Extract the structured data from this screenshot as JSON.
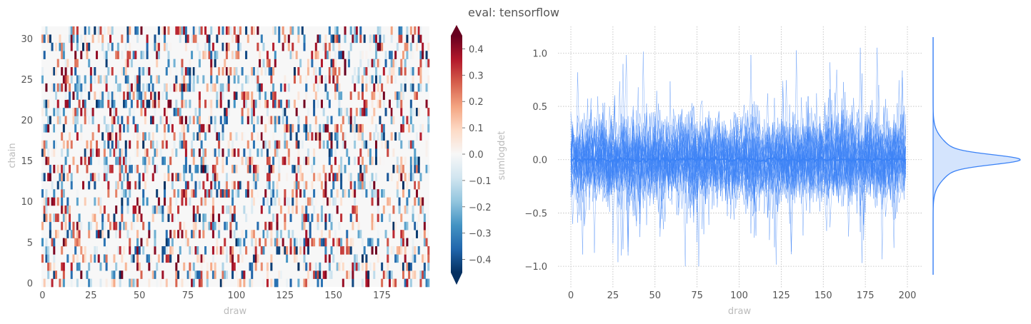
{
  "title": "eval: tensorflow",
  "chart_data": [
    {
      "type": "heatmap",
      "xlabel": "draw",
      "ylabel": "chain",
      "x_range": [
        0,
        199
      ],
      "y_range": [
        0,
        31
      ],
      "xticks": [
        0,
        25,
        50,
        75,
        100,
        125,
        150,
        175
      ],
      "yticks": [
        0,
        5,
        10,
        15,
        20,
        25,
        30
      ],
      "colorbar": {
        "label": "sumlogdet",
        "colormap": "RdBu_r",
        "range": [
          -0.45,
          0.45
        ],
        "ticks": [
          -0.4,
          -0.3,
          -0.2,
          -0.1,
          0.0,
          0.1,
          0.2,
          0.3,
          0.4
        ],
        "tick_labels": [
          "−0.4",
          "−0.3",
          "−0.2",
          "−0.1",
          "0.0",
          "0.1",
          "0.2",
          "0.3",
          "0.4"
        ],
        "extend": "both"
      },
      "note_values": "sparse random values in [-0.45, 0.45]; most cells ~0"
    },
    {
      "type": "line",
      "xlabel": "draw",
      "ylabel": "",
      "xlim": [
        0,
        199
      ],
      "ylim": [
        -1.2,
        1.25
      ],
      "xticks": [
        0,
        25,
        50,
        75,
        100,
        125,
        150,
        175,
        200
      ],
      "yticks": [
        -1.0,
        -0.5,
        0.0,
        0.5,
        1.0
      ],
      "ytick_labels": [
        "−1.0",
        "−0.5",
        "0.0",
        "0.5",
        "1.0"
      ],
      "n_chains": 32,
      "mean_value": 0.0,
      "color": "#3b82f6",
      "grid": true,
      "marginal": "kde"
    }
  ]
}
